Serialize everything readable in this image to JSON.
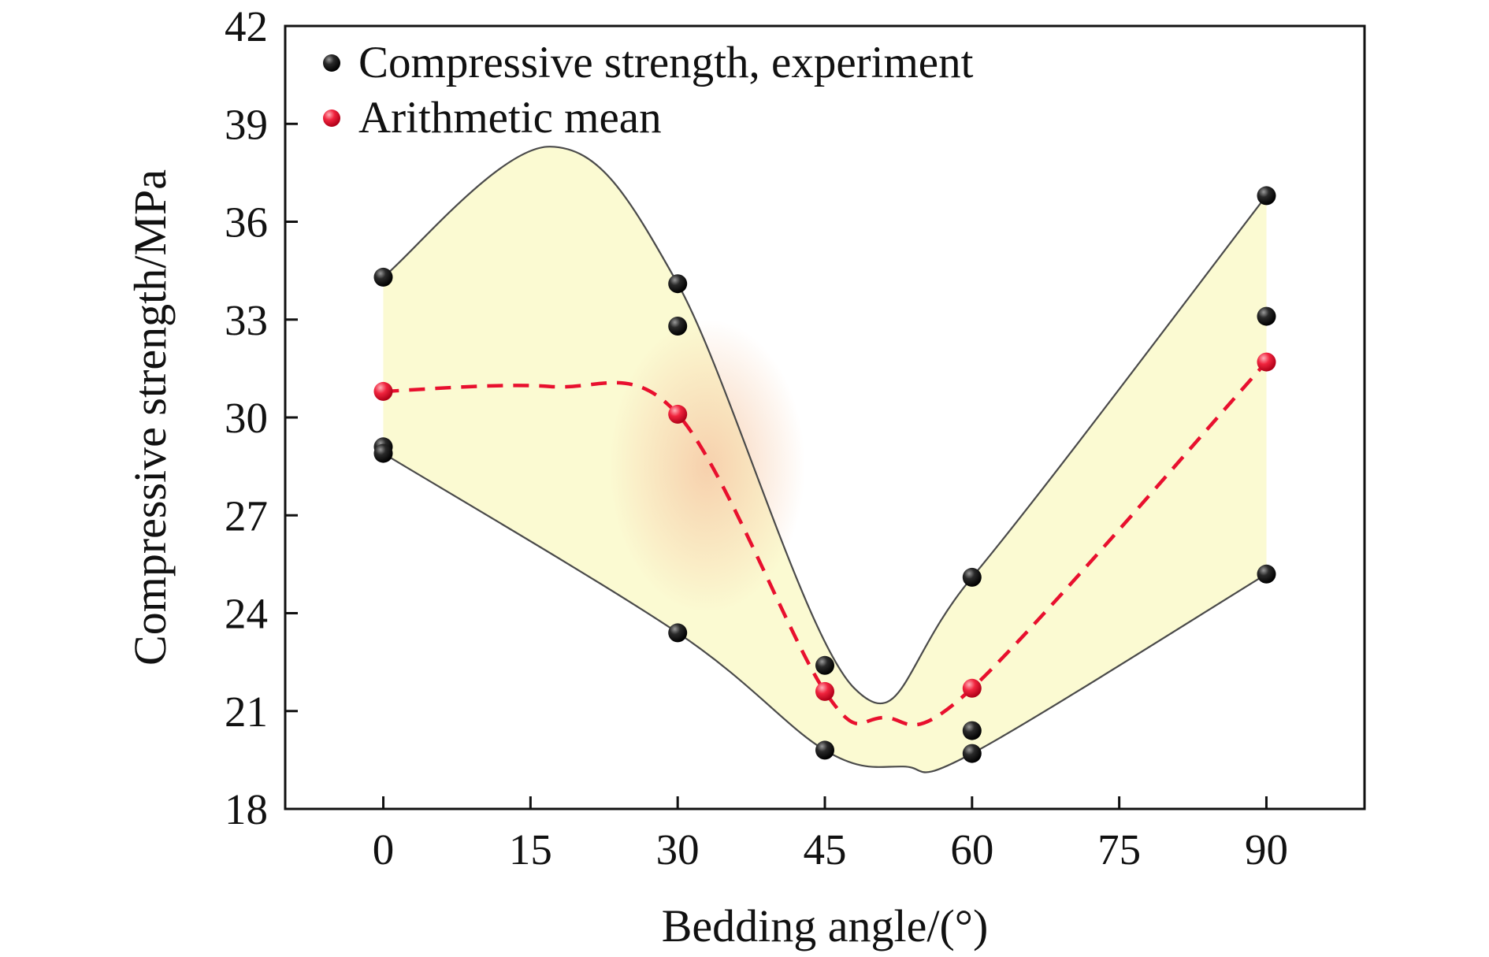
{
  "chart_data": {
    "type": "scatter",
    "title": "",
    "xlabel": "Bedding angle/(°)",
    "ylabel": "Compressive strength/MPa",
    "xlim": [
      -10,
      100
    ],
    "ylim": [
      18,
      42
    ],
    "xticks": [
      0,
      15,
      30,
      45,
      60,
      75,
      90
    ],
    "yticks": [
      18,
      21,
      24,
      27,
      30,
      33,
      36,
      39,
      42
    ],
    "grid": false,
    "legend_position": "top-left",
    "series": [
      {
        "name": "Compressive strength, experiment",
        "color": "#1a1a1a",
        "points": [
          {
            "x": 0,
            "y": 34.3
          },
          {
            "x": 0,
            "y": 29.1
          },
          {
            "x": 0,
            "y": 28.9
          },
          {
            "x": 30,
            "y": 34.1
          },
          {
            "x": 30,
            "y": 32.8
          },
          {
            "x": 30,
            "y": 23.4
          },
          {
            "x": 45,
            "y": 22.4
          },
          {
            "x": 45,
            "y": 19.8
          },
          {
            "x": 60,
            "y": 25.1
          },
          {
            "x": 60,
            "y": 20.4
          },
          {
            "x": 60,
            "y": 19.7
          },
          {
            "x": 90,
            "y": 36.8
          },
          {
            "x": 90,
            "y": 33.1
          },
          {
            "x": 90,
            "y": 25.2
          }
        ]
      },
      {
        "name": "Arithmetic mean",
        "color": "#e8102e",
        "points": [
          {
            "x": 0,
            "y": 30.8
          },
          {
            "x": 30,
            "y": 30.1
          },
          {
            "x": 45,
            "y": 21.6
          },
          {
            "x": 60,
            "y": 21.7
          },
          {
            "x": 90,
            "y": 31.7
          }
        ]
      }
    ],
    "envelope_upper": [
      {
        "x": 0,
        "y": 34.3
      },
      {
        "x": 17,
        "y": 38.3
      },
      {
        "x": 30,
        "y": 34.1
      },
      {
        "x": 48,
        "y": 21.7
      },
      {
        "x": 60,
        "y": 25.1
      },
      {
        "x": 90,
        "y": 36.8
      }
    ],
    "envelope_lower": [
      {
        "x": 0,
        "y": 28.9
      },
      {
        "x": 30,
        "y": 23.4
      },
      {
        "x": 45,
        "y": 19.8
      },
      {
        "x": 53,
        "y": 19.3
      },
      {
        "x": 60,
        "y": 19.7
      },
      {
        "x": 90,
        "y": 25.2
      }
    ],
    "mean_curve": [
      {
        "x": 0,
        "y": 30.8
      },
      {
        "x": 17,
        "y": 30.95
      },
      {
        "x": 30,
        "y": 30.1
      },
      {
        "x": 45,
        "y": 21.6
      },
      {
        "x": 51,
        "y": 20.8
      },
      {
        "x": 60,
        "y": 21.7
      },
      {
        "x": 90,
        "y": 31.7
      }
    ],
    "colors": {
      "fill": "#fbfad2",
      "fill_overlay": "#f8cfae",
      "envelope_line": "#4a4a4a",
      "mean_line": "#e8102e",
      "axis": "#111111"
    }
  }
}
